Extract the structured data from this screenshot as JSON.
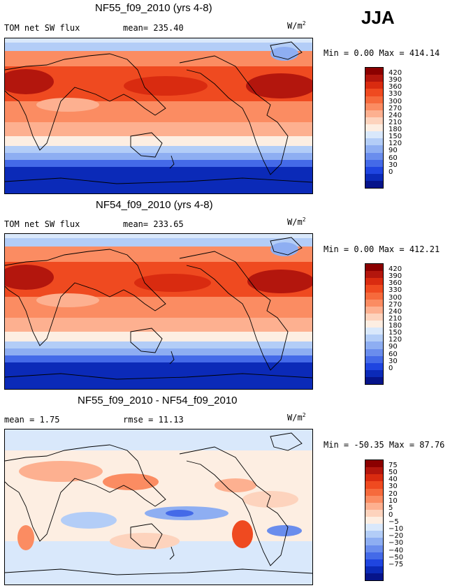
{
  "season": "JJA",
  "units_base": "W/m",
  "units_exp": "2",
  "panels": [
    {
      "title": "NF55_f09_2010 (yrs 4-8)",
      "label_left": "TOM net SW flux",
      "stat_label": "mean=",
      "stat_value": "235.40",
      "range_text": "Min =    0.00 Max = 414.14"
    },
    {
      "title": "NF54_f09_2010 (yrs 4-8)",
      "label_left": "TOM net SW flux",
      "stat_label": "mean=",
      "stat_value": "233.65",
      "range_text": "Min =    0.00 Max = 412.21"
    },
    {
      "title": "NF55_f09_2010 - NF54_f09_2010",
      "label_left": "mean =    1.75",
      "stat_label": "rmse =",
      "stat_value": "11.13",
      "range_text": "Min = -50.35 Max =  87.76"
    }
  ],
  "chart_data": [
    {
      "type": "heatmap",
      "title": "NF55_f09_2010 (yrs 4-8)",
      "variable": "TOM net SW flux",
      "mean": 235.4,
      "min": 0.0,
      "max": 414.14,
      "units": "W/m2",
      "colorbar_levels": [
        "420",
        "390",
        "360",
        "330",
        "300",
        "270",
        "240",
        "210",
        "180",
        "150",
        "120",
        "90",
        "60",
        "30",
        "0"
      ],
      "colors": [
        "#8b0000",
        "#b3160d",
        "#d92b10",
        "#ef4a20",
        "#f66a3c",
        "#fb8c62",
        "#fdb090",
        "#fdd3bd",
        "#fdeee2",
        "#d9e8fb",
        "#b3cdf7",
        "#8eaef2",
        "#6a8ded",
        "#446ae8",
        "#1f45e0",
        "#0b2ab8",
        "#06148a"
      ]
    },
    {
      "type": "heatmap",
      "title": "NF54_f09_2010 (yrs 4-8)",
      "variable": "TOM net SW flux",
      "mean": 233.65,
      "min": 0.0,
      "max": 412.21,
      "units": "W/m2",
      "colorbar_levels": [
        "420",
        "390",
        "360",
        "330",
        "300",
        "270",
        "240",
        "210",
        "180",
        "150",
        "120",
        "90",
        "60",
        "30",
        "0"
      ],
      "colors": [
        "#8b0000",
        "#b3160d",
        "#d92b10",
        "#ef4a20",
        "#f66a3c",
        "#fb8c62",
        "#fdb090",
        "#fdd3bd",
        "#fdeee2",
        "#d9e8fb",
        "#b3cdf7",
        "#8eaef2",
        "#6a8ded",
        "#446ae8",
        "#1f45e0",
        "#0b2ab8",
        "#06148a"
      ]
    },
    {
      "type": "heatmap",
      "title": "NF55_f09_2010 - NF54_f09_2010",
      "variable": "difference",
      "mean": 1.75,
      "rmse": 11.13,
      "min": -50.35,
      "max": 87.76,
      "units": "W/m2",
      "colorbar_levels": [
        "75",
        "50",
        "40",
        "30",
        "20",
        "10",
        "5",
        "0",
        "−5",
        "−10",
        "−20",
        "−30",
        "−40",
        "−50",
        "−75"
      ],
      "colors": [
        "#8b0000",
        "#b3160d",
        "#d92b10",
        "#ef4a20",
        "#f66a3c",
        "#fb8c62",
        "#fdb090",
        "#fdd3bd",
        "#fdeee2",
        "#d9e8fb",
        "#b3cdf7",
        "#8eaef2",
        "#6a8ded",
        "#446ae8",
        "#1f45e0",
        "#0b2ab8",
        "#06148a"
      ]
    }
  ]
}
